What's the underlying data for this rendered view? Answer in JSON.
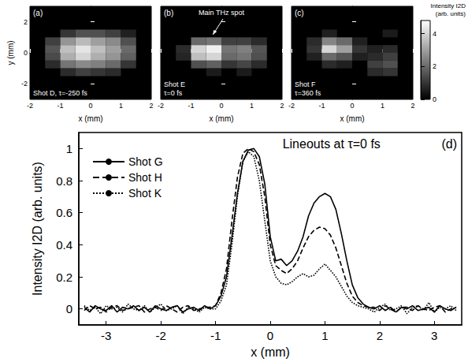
{
  "chart_data": [
    {
      "type": "heatmap",
      "panel": "(a)",
      "annotation": "Shot D, τ=-250 fs",
      "x_label": "x (mm)",
      "y_label": "y (mm)",
      "xlim": [
        -2,
        2
      ],
      "xticks": [
        -2,
        -1,
        0,
        1,
        2
      ],
      "ylim": [
        -3,
        3
      ],
      "yticks": [
        -2,
        0,
        2
      ],
      "cell_size": 0.5,
      "cells": [
        [
          -0.75,
          1.25,
          1.0
        ],
        [
          -0.25,
          1.25,
          1.5
        ],
        [
          0.25,
          1.25,
          1.5
        ],
        [
          0.75,
          1.25,
          1.2
        ],
        [
          1.25,
          1.25,
          0.6
        ],
        [
          -1.25,
          0.75,
          1.2
        ],
        [
          -0.75,
          0.75,
          2.8
        ],
        [
          -0.25,
          0.75,
          3.5
        ],
        [
          0.25,
          0.75,
          3.0
        ],
        [
          0.75,
          0.75,
          2.6
        ],
        [
          1.25,
          0.75,
          1.5
        ],
        [
          -1.25,
          0.25,
          1.6
        ],
        [
          -0.75,
          0.25,
          3.6
        ],
        [
          -0.25,
          0.25,
          4.3
        ],
        [
          0.25,
          0.25,
          3.6
        ],
        [
          0.75,
          0.25,
          3.0
        ],
        [
          1.25,
          0.25,
          2.0
        ],
        [
          -1.25,
          -0.25,
          1.4
        ],
        [
          -0.75,
          -0.25,
          3.3
        ],
        [
          -0.25,
          -0.25,
          4.0
        ],
        [
          0.25,
          -0.25,
          3.3
        ],
        [
          0.75,
          -0.25,
          2.8
        ],
        [
          1.25,
          -0.25,
          1.8
        ],
        [
          -1.25,
          -0.75,
          0.8
        ],
        [
          -0.75,
          -0.75,
          2.2
        ],
        [
          -0.25,
          -0.75,
          2.6
        ],
        [
          0.25,
          -0.75,
          2.4
        ],
        [
          0.75,
          -0.75,
          2.0
        ],
        [
          1.25,
          -0.75,
          1.0
        ],
        [
          -0.75,
          -1.25,
          0.8
        ],
        [
          -0.25,
          -1.25,
          1.2
        ],
        [
          0.25,
          -1.25,
          1.0
        ],
        [
          0.75,
          -1.25,
          0.8
        ]
      ]
    },
    {
      "type": "heatmap",
      "panel": "(b)",
      "annotation": "Shot E\nτ=0 fs",
      "callout": "Main THz spot",
      "x_label": "x (mm)",
      "tick_labels": "x",
      "xlim": [
        -2,
        2
      ],
      "xticks": [
        -2,
        -1,
        0,
        1,
        2
      ],
      "ylim": [
        -3,
        3
      ],
      "yticks": [
        -2,
        0,
        2
      ],
      "cell_size": 0.5,
      "cells": [
        [
          -0.75,
          0.75,
          2.0
        ],
        [
          -0.25,
          0.75,
          2.2
        ],
        [
          0.25,
          0.75,
          1.2
        ],
        [
          0.75,
          0.75,
          1.2
        ],
        [
          1.25,
          0.75,
          0.8
        ],
        [
          -1.25,
          0.25,
          0.8
        ],
        [
          -0.75,
          0.25,
          4.0
        ],
        [
          -0.25,
          0.25,
          4.5
        ],
        [
          0.25,
          0.25,
          2.2
        ],
        [
          0.75,
          0.25,
          2.4
        ],
        [
          1.25,
          0.25,
          1.6
        ],
        [
          -1.25,
          -0.25,
          0.7
        ],
        [
          -0.75,
          -0.25,
          3.6
        ],
        [
          -0.25,
          -0.25,
          4.0
        ],
        [
          0.25,
          -0.25,
          2.0
        ],
        [
          0.75,
          -0.25,
          2.2
        ],
        [
          1.25,
          -0.25,
          1.5
        ],
        [
          -0.75,
          -0.75,
          1.5
        ],
        [
          -0.25,
          -0.75,
          1.8
        ],
        [
          0.25,
          -0.75,
          1.0
        ],
        [
          0.75,
          -0.75,
          1.3
        ],
        [
          1.25,
          -0.75,
          0.8
        ],
        [
          -0.25,
          -1.25,
          0.5
        ],
        [
          0.75,
          -1.25,
          0.5
        ]
      ]
    },
    {
      "type": "heatmap",
      "panel": "(c)",
      "annotation": "Shot F\nτ=360 fs",
      "x_label": "x (mm)",
      "tick_labels": "x",
      "xlim": [
        -2,
        2
      ],
      "xticks": [
        -2,
        -1,
        0,
        1,
        2
      ],
      "ylim": [
        -3,
        3
      ],
      "yticks": [
        -2,
        0,
        2
      ],
      "cell_size": 0.5,
      "cells": [
        [
          -0.75,
          1.25,
          0.6
        ],
        [
          1.25,
          1.25,
          0.5
        ],
        [
          -1.25,
          0.75,
          0.8
        ],
        [
          -0.75,
          0.75,
          2.5
        ],
        [
          -0.25,
          0.75,
          2.0
        ],
        [
          0.25,
          0.75,
          0.6
        ],
        [
          -1.25,
          0.25,
          1.0
        ],
        [
          -0.75,
          0.25,
          4.0
        ],
        [
          -0.25,
          0.25,
          3.0
        ],
        [
          0.25,
          0.25,
          1.0
        ],
        [
          0.75,
          0.25,
          0.6
        ],
        [
          1.25,
          0.25,
          0.8
        ],
        [
          -1.25,
          -0.25,
          0.6
        ],
        [
          -0.75,
          -0.25,
          2.0
        ],
        [
          -0.25,
          -0.25,
          1.6
        ],
        [
          0.25,
          -0.25,
          0.6
        ],
        [
          0.75,
          -0.25,
          0.8
        ],
        [
          1.25,
          -0.25,
          1.2
        ],
        [
          -0.75,
          -0.75,
          0.8
        ],
        [
          -0.25,
          -0.75,
          0.6
        ],
        [
          0.75,
          -0.75,
          1.2
        ],
        [
          1.25,
          -0.75,
          1.5
        ],
        [
          0.75,
          -1.25,
          0.8
        ],
        [
          1.25,
          -1.25,
          1.0
        ]
      ],
      "colorbar": {
        "title": "Intensity I2D (arb. units)",
        "lim": [
          0,
          4.8
        ],
        "ticks": [
          0,
          2,
          4
        ]
      }
    },
    {
      "type": "line",
      "panel": "(d)",
      "title": "Lineouts at τ=0 fs",
      "x_label": "x (mm)",
      "y_label": "Intensity I2D (arb. units)",
      "xlim": [
        -3.5,
        3.5
      ],
      "xticks": [
        -3,
        -2,
        -1,
        0,
        1,
        2,
        3
      ],
      "ylim": [
        -0.1,
        1.1
      ],
      "yticks": [
        0,
        0.2,
        0.4,
        0.6,
        0.8,
        1
      ],
      "legend": "top-left",
      "x": [
        -3.4,
        -3.3,
        -3.2,
        -3.1,
        -3,
        -2.9,
        -2.8,
        -2.7,
        -2.6,
        -2.5,
        -2.4,
        -2.3,
        -2.2,
        -2.1,
        -2,
        -1.9,
        -1.8,
        -1.7,
        -1.6,
        -1.5,
        -1.4,
        -1.3,
        -1.2,
        -1.1,
        -1,
        -0.9,
        -0.8,
        -0.7,
        -0.6,
        -0.5,
        -0.4,
        -0.3,
        -0.2,
        -0.1,
        0,
        0.1,
        0.2,
        0.3,
        0.4,
        0.5,
        0.6,
        0.7,
        0.8,
        0.9,
        1,
        1.1,
        1.2,
        1.3,
        1.4,
        1.5,
        1.6,
        1.7,
        1.8,
        1.9,
        2,
        2.1,
        2.2,
        2.3,
        2.4,
        2.5,
        2.6,
        2.7,
        2.8,
        2.9,
        3,
        3.1,
        3.2,
        3.3,
        3.4
      ],
      "series": [
        {
          "name": "Shot G",
          "color": "#000000",
          "line_style": "solid",
          "values": [
            0.01,
            -0.02,
            0.02,
            0,
            -0.01,
            0.02,
            -0.02,
            0.01,
            0,
            0.02,
            -0.01,
            0.01,
            -0.02,
            0.02,
            0,
            -0.01,
            0.01,
            0.02,
            -0.02,
            0,
            0.01,
            -0.01,
            0.02,
            0,
            0.02,
            0.08,
            0.2,
            0.45,
            0.72,
            0.92,
            0.99,
            1.0,
            0.95,
            0.78,
            0.45,
            0.3,
            0.31,
            0.27,
            0.3,
            0.36,
            0.45,
            0.58,
            0.66,
            0.7,
            0.72,
            0.7,
            0.62,
            0.47,
            0.3,
            0.15,
            0.07,
            0.03,
            0.01,
            0,
            0.02,
            -0.01,
            0.01,
            -0.02,
            0.01,
            0,
            0.02,
            -0.01,
            0,
            0.01,
            -0.02,
            0.02,
            0,
            -0.01,
            0.01
          ]
        },
        {
          "name": "Shot H",
          "color": "#000000",
          "line_style": "dashed",
          "values": [
            -0.01,
            0.02,
            0,
            0.01,
            -0.02,
            0.01,
            0.02,
            -0.01,
            0,
            0.01,
            0.02,
            -0.02,
            0,
            0.01,
            -0.01,
            0.02,
            0,
            -0.02,
            0.01,
            0.02,
            -0.01,
            0,
            0.01,
            0.01,
            0.02,
            0.1,
            0.25,
            0.55,
            0.82,
            0.97,
            1.0,
            0.98,
            0.9,
            0.7,
            0.4,
            0.27,
            0.24,
            0.22,
            0.25,
            0.3,
            0.38,
            0.45,
            0.49,
            0.51,
            0.5,
            0.46,
            0.38,
            0.27,
            0.16,
            0.08,
            0.04,
            0.02,
            0.01,
            0.01,
            -0.01,
            0.02,
            0,
            -0.02,
            0.01,
            0.01,
            -0.01,
            0.02,
            0,
            -0.01,
            0.01,
            0.02,
            -0.02,
            0,
            0.01
          ]
        },
        {
          "name": "Shot K",
          "color": "#000000",
          "line_style": "dotted",
          "values": [
            0.02,
            -0.01,
            0.01,
            -0.03,
            0.02,
            0,
            0.01,
            -0.02,
            0.03,
            0,
            -0.01,
            0.02,
            -0.02,
            0.01,
            0.03,
            -0.01,
            0,
            0.02,
            -0.03,
            0.01,
            0,
            -0.02,
            0.01,
            0,
            0,
            0.05,
            0.15,
            0.4,
            0.7,
            0.92,
            0.98,
            0.95,
            0.8,
            0.55,
            0.3,
            0.2,
            0.16,
            0.15,
            0.17,
            0.2,
            0.22,
            0.2,
            0.21,
            0.25,
            0.28,
            0.24,
            0.2,
            0.14,
            0.08,
            0.04,
            0.02,
            0.01,
            0.0,
            -0.02,
            0.01,
            0.03,
            -0.01,
            0,
            0.02,
            -0.03,
            0.01,
            0.02,
            -0.01,
            0.04,
            -0.02,
            0.01,
            0,
            0.02,
            -0.01
          ]
        }
      ]
    }
  ]
}
